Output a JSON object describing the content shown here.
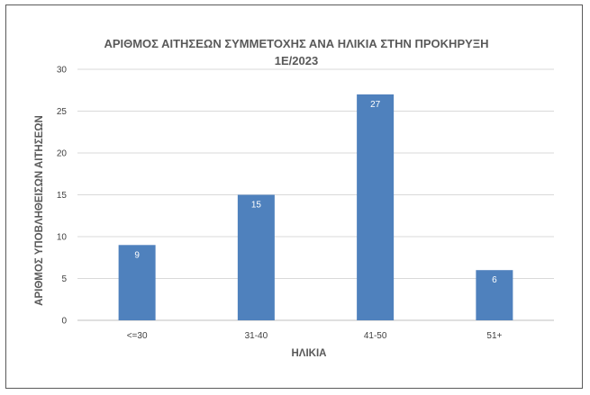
{
  "chart_data": {
    "type": "bar",
    "title_line1": "ΑΡΙΘΜΟΣ ΑΙΤΗΣΕΩΝ ΣΥΜΜΕΤΟΧΗΣ ΑΝΑ ΗΛΙΚΙΑ ΣΤΗΝ ΠΡΟΚΗΡΥΞΗ",
    "title_line2": "1Ε/2023",
    "xlabel": "ΗΛΙΚΙΑ",
    "ylabel": "ΑΡΙΘΜΟΣ ΥΠΟΒΛΗΘΕΙΣΩΝ ΑΙΤΗΣΕΩΝ",
    "categories": [
      "<=30",
      "31-40",
      "41-50",
      "51+"
    ],
    "values": [
      9,
      15,
      27,
      6
    ],
    "data_labels": [
      "9",
      "15",
      "27",
      "6"
    ],
    "ylim": [
      0,
      30
    ],
    "yticks": [
      "0",
      "5",
      "10",
      "15",
      "20",
      "25",
      "30"
    ],
    "grid": true,
    "legend": "none",
    "colors": {
      "bar": "#4f81bd",
      "grid": "#d9d9d9",
      "text": "#595959"
    }
  }
}
